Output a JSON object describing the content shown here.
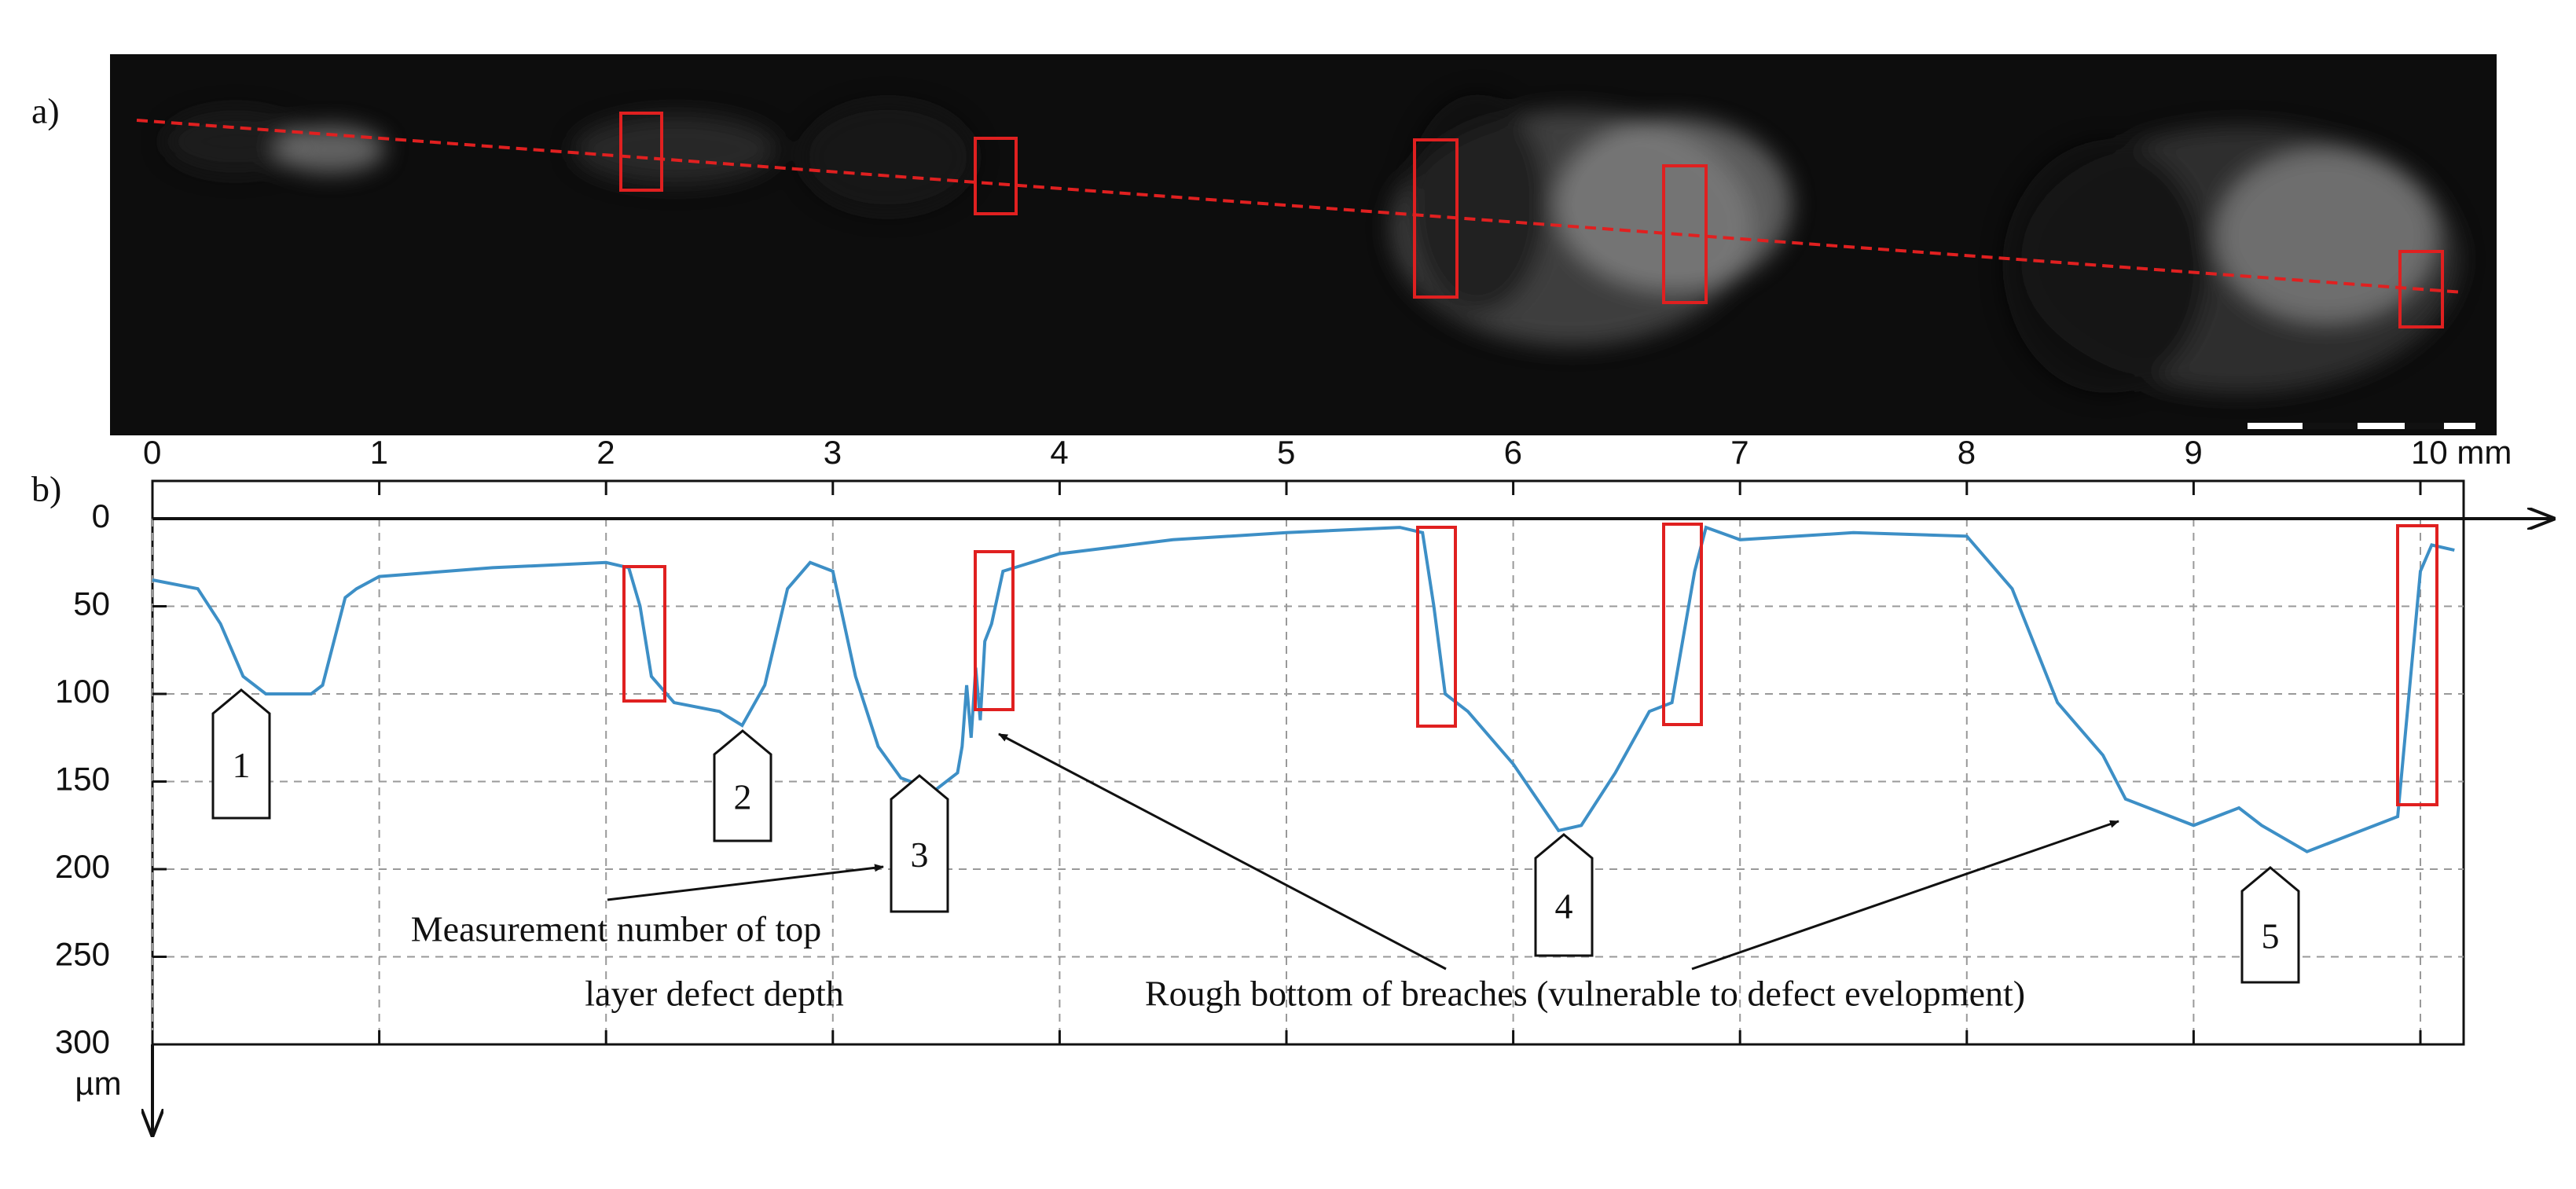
{
  "chart_data": {
    "type": "line",
    "panel_labels": [
      "a)",
      "b)"
    ],
    "y_unit": "µm",
    "x": [
      0,
      0.2,
      0.3,
      0.4,
      0.5,
      0.6,
      0.7,
      0.75,
      0.85,
      0.9,
      1.0,
      1.5,
      2.0,
      2.1,
      2.15,
      2.2,
      2.3,
      2.5,
      2.6,
      2.7,
      2.8,
      2.9,
      3.0,
      3.1,
      3.2,
      3.3,
      3.45,
      3.55,
      3.57,
      3.59,
      3.61,
      3.63,
      3.65,
      3.67,
      3.7,
      3.75,
      4.0,
      4.5,
      5.0,
      5.5,
      5.6,
      5.65,
      5.7,
      5.8,
      6.0,
      6.2,
      6.3,
      6.45,
      6.6,
      6.7,
      6.8,
      6.85,
      7.0,
      7.5,
      8.0,
      8.2,
      8.4,
      8.5,
      8.6,
      8.7,
      9.0,
      9.2,
      9.3,
      9.5,
      9.7,
      9.9,
      10.0,
      10.05,
      10.15
    ],
    "values": [
      35,
      40,
      60,
      90,
      100,
      100,
      100,
      95,
      45,
      40,
      33,
      28,
      25,
      28,
      50,
      90,
      105,
      110,
      118,
      95,
      40,
      25,
      30,
      90,
      130,
      148,
      155,
      145,
      130,
      95,
      125,
      85,
      115,
      70,
      60,
      30,
      20,
      12,
      8,
      5,
      8,
      50,
      100,
      110,
      140,
      178,
      175,
      145,
      110,
      105,
      30,
      5,
      12,
      8,
      10,
      40,
      105,
      120,
      135,
      160,
      175,
      165,
      175,
      190,
      180,
      170,
      30,
      15,
      18
    ],
    "color": "#3d8fc6",
    "xlim": [
      0,
      10.2
    ],
    "ylim": [
      0,
      300
    ],
    "xticks": [
      0,
      1,
      2,
      3,
      4,
      5,
      6,
      7,
      8,
      9,
      {
        "value": 10,
        "label": "10 mm"
      }
    ],
    "yticks": [
      0,
      50,
      100,
      150,
      200,
      250,
      300
    ],
    "grid": true,
    "callouts": [
      "1",
      "2",
      "3",
      "4",
      "5"
    ],
    "annotations": [
      "Measurement number of top",
      "layer defect depth",
      "Rough bottom of breaches (vulnerable to defect evelopment)"
    ]
  }
}
